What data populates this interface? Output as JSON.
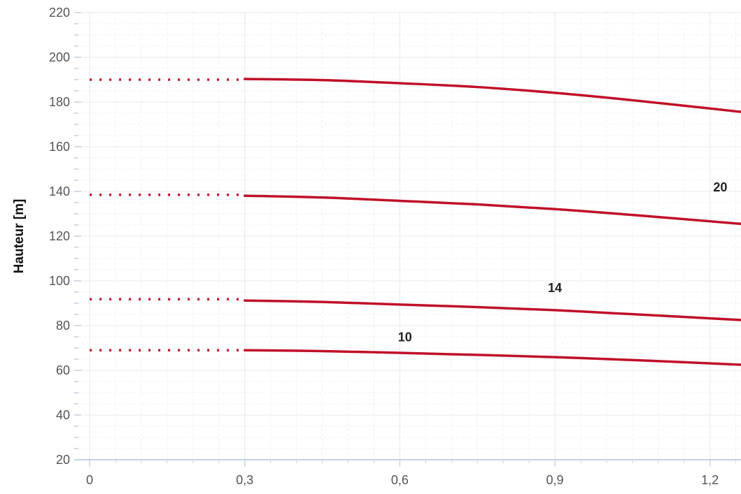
{
  "chart_data": {
    "type": "line",
    "title": "",
    "xlabel": "",
    "ylabel": "Hauteur [m]",
    "xlim": [
      -0.03,
      1.26
    ],
    "ylim": [
      20,
      220
    ],
    "x_ticks": [
      0,
      0.3,
      0.6,
      0.9,
      1.2
    ],
    "x_tick_labels": [
      "0",
      "0,3",
      "0,6",
      "0,9",
      "1,2"
    ],
    "y_ticks": [
      20,
      40,
      60,
      80,
      100,
      120,
      140,
      160,
      180,
      200,
      220
    ],
    "y_tick_labels": [
      "20",
      "40",
      "60",
      "80",
      "100",
      "120",
      "140",
      "160",
      "180",
      "200",
      "220"
    ],
    "grid": true,
    "series_color": "#c0102a",
    "grid_color": "#e8e8ea",
    "minor_grid_color": "#f1f1f3",
    "axis_color": "#c5d3e8",
    "series": [
      {
        "name": "10",
        "label_text": "10",
        "label_at": [
          0.61,
          73
        ],
        "dotted": {
          "x": [
            0,
            0.3
          ],
          "y": [
            69,
            69
          ]
        },
        "x": [
          0.3,
          0.45,
          0.6,
          0.75,
          0.9,
          1.05,
          1.26
        ],
        "y": [
          69,
          68.6,
          67.8,
          66.9,
          65.9,
          64.6,
          62.5
        ]
      },
      {
        "name": "14",
        "label_text": "14",
        "label_at": [
          0.9,
          95
        ],
        "dotted": {
          "x": [
            0,
            0.3
          ],
          "y": [
            91.8,
            91.8
          ]
        },
        "x": [
          0.3,
          0.45,
          0.6,
          0.75,
          0.9,
          1.05,
          1.26
        ],
        "y": [
          91.2,
          90.6,
          89.4,
          88.3,
          86.9,
          85.1,
          82.5
        ]
      },
      {
        "name": "20",
        "label_text": "20",
        "label_at": [
          1.22,
          140
        ],
        "dotted": {
          "x": [
            0,
            0.3
          ],
          "y": [
            138.5,
            138.5
          ]
        },
        "x": [
          0.3,
          0.45,
          0.6,
          0.75,
          0.9,
          1.05,
          1.26
        ],
        "y": [
          138.1,
          137.3,
          135.8,
          134.2,
          132.1,
          129.5,
          125.5
        ]
      },
      {
        "name": "",
        "label_text": "",
        "dotted": {
          "x": [
            0,
            0.3
          ],
          "y": [
            190,
            190
          ]
        },
        "x": [
          0.3,
          0.45,
          0.6,
          0.75,
          0.9,
          1.05,
          1.26
        ],
        "y": [
          190.3,
          189.8,
          188.4,
          186.7,
          184.1,
          180.8,
          175.6
        ]
      }
    ]
  }
}
